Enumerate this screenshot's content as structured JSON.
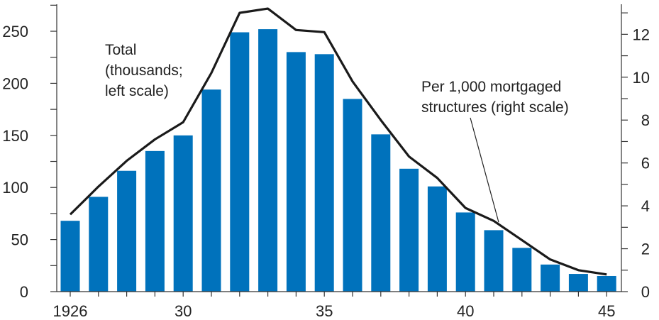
{
  "chart_data": {
    "type": "bar",
    "title": "",
    "xlabel": "",
    "ylabel": "",
    "x": [
      1926,
      1927,
      1928,
      1929,
      1930,
      1931,
      1932,
      1933,
      1934,
      1935,
      1936,
      1937,
      1938,
      1939,
      1940,
      1941,
      1942,
      1943,
      1944,
      1945
    ],
    "x_tick_labels": [
      {
        "x": 1926,
        "label": "1926"
      },
      {
        "x": 1930,
        "label": "30"
      },
      {
        "x": 1935,
        "label": "35"
      },
      {
        "x": 1940,
        "label": "40"
      },
      {
        "x": 1945,
        "label": "45"
      }
    ],
    "series": [
      {
        "type": "bar",
        "axis": "left",
        "color": "#0072bc",
        "values": [
          68,
          91,
          116,
          135,
          150,
          194,
          249,
          252,
          230,
          228,
          185,
          151,
          118,
          101,
          76,
          59,
          42,
          26,
          17,
          15
        ]
      },
      {
        "type": "line",
        "axis": "right",
        "color": "#1a1a1a",
        "values": [
          3.6,
          4.9,
          6.1,
          7.1,
          7.9,
          10.2,
          13.0,
          13.2,
          12.2,
          12.1,
          9.8,
          8.0,
          6.3,
          5.3,
          3.9,
          3.3,
          2.4,
          1.5,
          1.0,
          0.8
        ]
      }
    ],
    "y_left": {
      "ylim": [
        0,
        280
      ],
      "ticks": [
        0,
        50,
        100,
        150,
        200,
        250
      ],
      "minor_ticks": [
        25,
        75,
        125,
        175,
        225,
        275
      ]
    },
    "y_right": {
      "ylim": [
        0,
        13.6
      ],
      "ticks": [
        0,
        2,
        4,
        6,
        8,
        10,
        12
      ],
      "minor_ticks": [
        1,
        3,
        5,
        7,
        9,
        11,
        13
      ]
    },
    "grid": false,
    "annotations": [
      {
        "lines": [
          "Total",
          "(thousands;",
          "left scale)"
        ],
        "target": "bars"
      },
      {
        "lines": [
          "Per 1,000 mortgaged",
          "structures (right scale)"
        ],
        "target": "line",
        "points_to_x": 1941
      }
    ]
  }
}
